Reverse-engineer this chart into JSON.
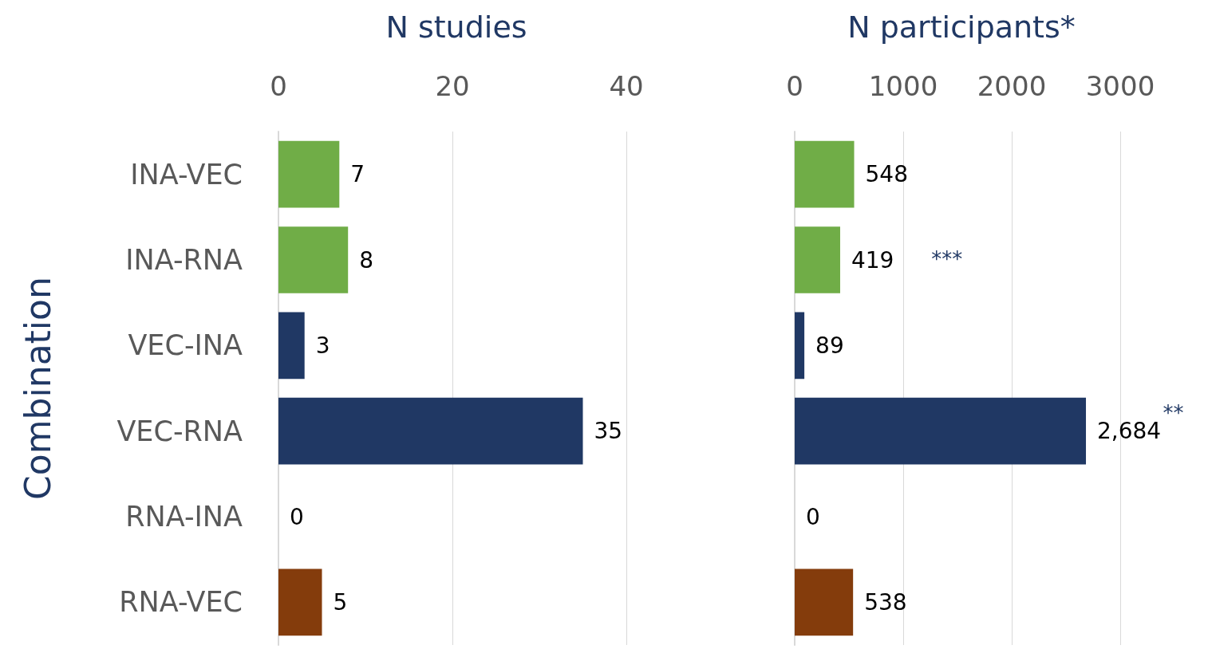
{
  "chart_data": [
    {
      "type": "bar",
      "orientation": "horizontal",
      "title": "N studies",
      "ylabel": "Combination",
      "categories": [
        "INA-VEC",
        "INA-RNA",
        "VEC-INA",
        "VEC-RNA",
        "RNA-INA",
        "RNA-VEC"
      ],
      "values": [
        7,
        8,
        3,
        35,
        0,
        5
      ],
      "colors": [
        "#70ad47",
        "#70ad47",
        "#203864",
        "#203864",
        "#203864",
        "#843c0c"
      ],
      "xlim": [
        0,
        40
      ],
      "xticks": [
        0,
        20,
        40
      ],
      "grid": "x",
      "data_labels": true
    },
    {
      "type": "bar",
      "orientation": "horizontal",
      "title": "N participants*",
      "categories": [
        null,
        null,
        null,
        null,
        null,
        null
      ],
      "values": [
        548,
        419,
        89,
        2684,
        0,
        538
      ],
      "value_labels": [
        "548",
        "419",
        "89",
        "2,684",
        "0",
        "538"
      ],
      "colors": [
        "#70ad47",
        "#70ad47",
        "#203864",
        "#203864",
        "#203864",
        "#843c0c"
      ],
      "xlim": [
        0,
        3000
      ],
      "xticks": [
        0,
        1000,
        2000,
        3000
      ],
      "grid": "x",
      "tick_labels": "x",
      "annotations": [
        "***",
        "**"
      ]
    }
  ]
}
